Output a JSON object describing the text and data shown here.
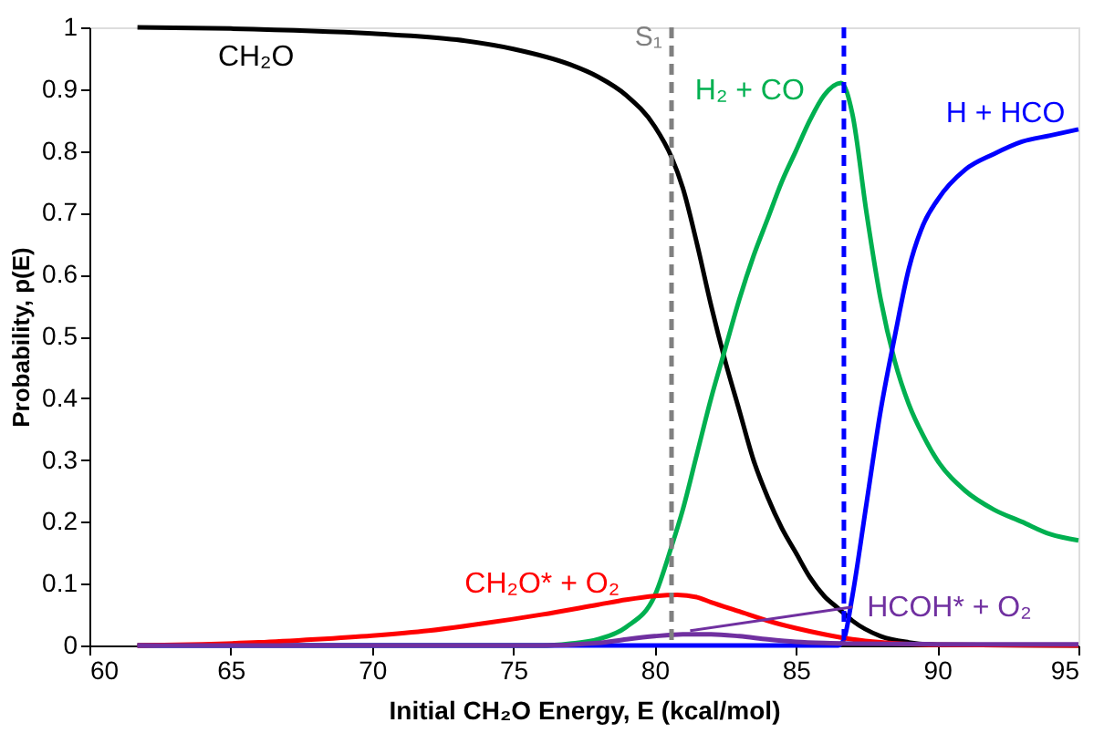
{
  "chart_data": {
    "type": "line",
    "xlabel": "Initial CH₂O Energy, E (kcal/mol)",
    "ylabel": "Probability, p(E)",
    "xlim": [
      60,
      95
    ],
    "xticks": [
      60,
      65,
      70,
      75,
      80,
      85,
      90,
      95
    ],
    "ylim": [
      0,
      1
    ],
    "yticks": [
      0,
      0.1,
      0.2,
      0.3,
      0.4,
      0.5,
      0.6,
      0.7,
      0.8,
      0.9,
      1
    ],
    "grid": false,
    "legend": false,
    "marker": "none",
    "line_style": "solid",
    "series": [
      {
        "name": "CH₂O",
        "color": "#000000",
        "x": [
          61.7,
          65,
          70,
          73,
          75,
          77,
          78,
          79,
          80,
          80.6,
          81,
          81.5,
          82,
          82.5,
          83,
          83.5,
          84,
          84.5,
          85,
          85.5,
          86,
          86.5,
          87,
          88,
          89,
          90,
          95
        ],
        "values": [
          1.0,
          0.998,
          0.99,
          0.98,
          0.965,
          0.94,
          0.92,
          0.89,
          0.84,
          0.79,
          0.74,
          0.65,
          0.55,
          0.46,
          0.38,
          0.3,
          0.24,
          0.19,
          0.15,
          0.11,
          0.08,
          0.06,
          0.04,
          0.015,
          0.005,
          0.001,
          0
        ]
      },
      {
        "name": "H₂ + CO",
        "color": "#00b050",
        "x": [
          61.7,
          76,
          77,
          78,
          79,
          80,
          80.6,
          81,
          81.5,
          82,
          82.5,
          83,
          83.5,
          84,
          84.5,
          85,
          85.5,
          86,
          86.6,
          87,
          87.5,
          88,
          88.5,
          89,
          89.5,
          90,
          91,
          92,
          93,
          94,
          95
        ],
        "values": [
          0,
          0,
          0.003,
          0.01,
          0.03,
          0.08,
          0.16,
          0.22,
          0.31,
          0.4,
          0.48,
          0.56,
          0.63,
          0.69,
          0.75,
          0.8,
          0.85,
          0.89,
          0.91,
          0.86,
          0.7,
          0.56,
          0.46,
          0.39,
          0.34,
          0.3,
          0.25,
          0.22,
          0.2,
          0.18,
          0.17
        ]
      },
      {
        "name": "H + HCO",
        "color": "#0000ff",
        "x": [
          61.7,
          86.5,
          86.7,
          87,
          87.5,
          88,
          88.5,
          89,
          89.5,
          90,
          91,
          92,
          93,
          94,
          95
        ],
        "values": [
          0,
          0,
          0.01,
          0.08,
          0.23,
          0.38,
          0.5,
          0.61,
          0.68,
          0.72,
          0.77,
          0.795,
          0.815,
          0.825,
          0.835
        ]
      },
      {
        "name": "CH₂O* + O₂",
        "color": "#ff0000",
        "x": [
          61.7,
          64,
          66,
          68,
          70,
          72,
          74,
          76,
          78,
          79,
          80,
          80.8,
          81.5,
          82,
          83,
          84,
          85,
          86,
          87,
          88,
          90,
          95
        ],
        "values": [
          0,
          0.002,
          0.005,
          0.01,
          0.016,
          0.024,
          0.036,
          0.05,
          0.066,
          0.074,
          0.08,
          0.082,
          0.078,
          0.07,
          0.055,
          0.04,
          0.028,
          0.018,
          0.01,
          0.005,
          0.001,
          0
        ]
      },
      {
        "name": "HCOH* + O₂",
        "color": "#7030a0",
        "x": [
          61.7,
          76,
          78,
          79,
          80,
          81,
          82,
          83,
          84,
          85,
          86,
          87,
          90,
          95
        ],
        "values": [
          0,
          0,
          0.004,
          0.01,
          0.015,
          0.018,
          0.018,
          0.015,
          0.01,
          0.006,
          0.004,
          0.003,
          0.002,
          0.002
        ]
      }
    ],
    "ref_lines": [
      {
        "axis": "x",
        "value": 80.6,
        "label": "S₁",
        "color": "#808080",
        "line_style": "dashed"
      },
      {
        "axis": "x",
        "value": 86.7,
        "color": "#0000ff",
        "line_style": "dashed"
      }
    ]
  }
}
